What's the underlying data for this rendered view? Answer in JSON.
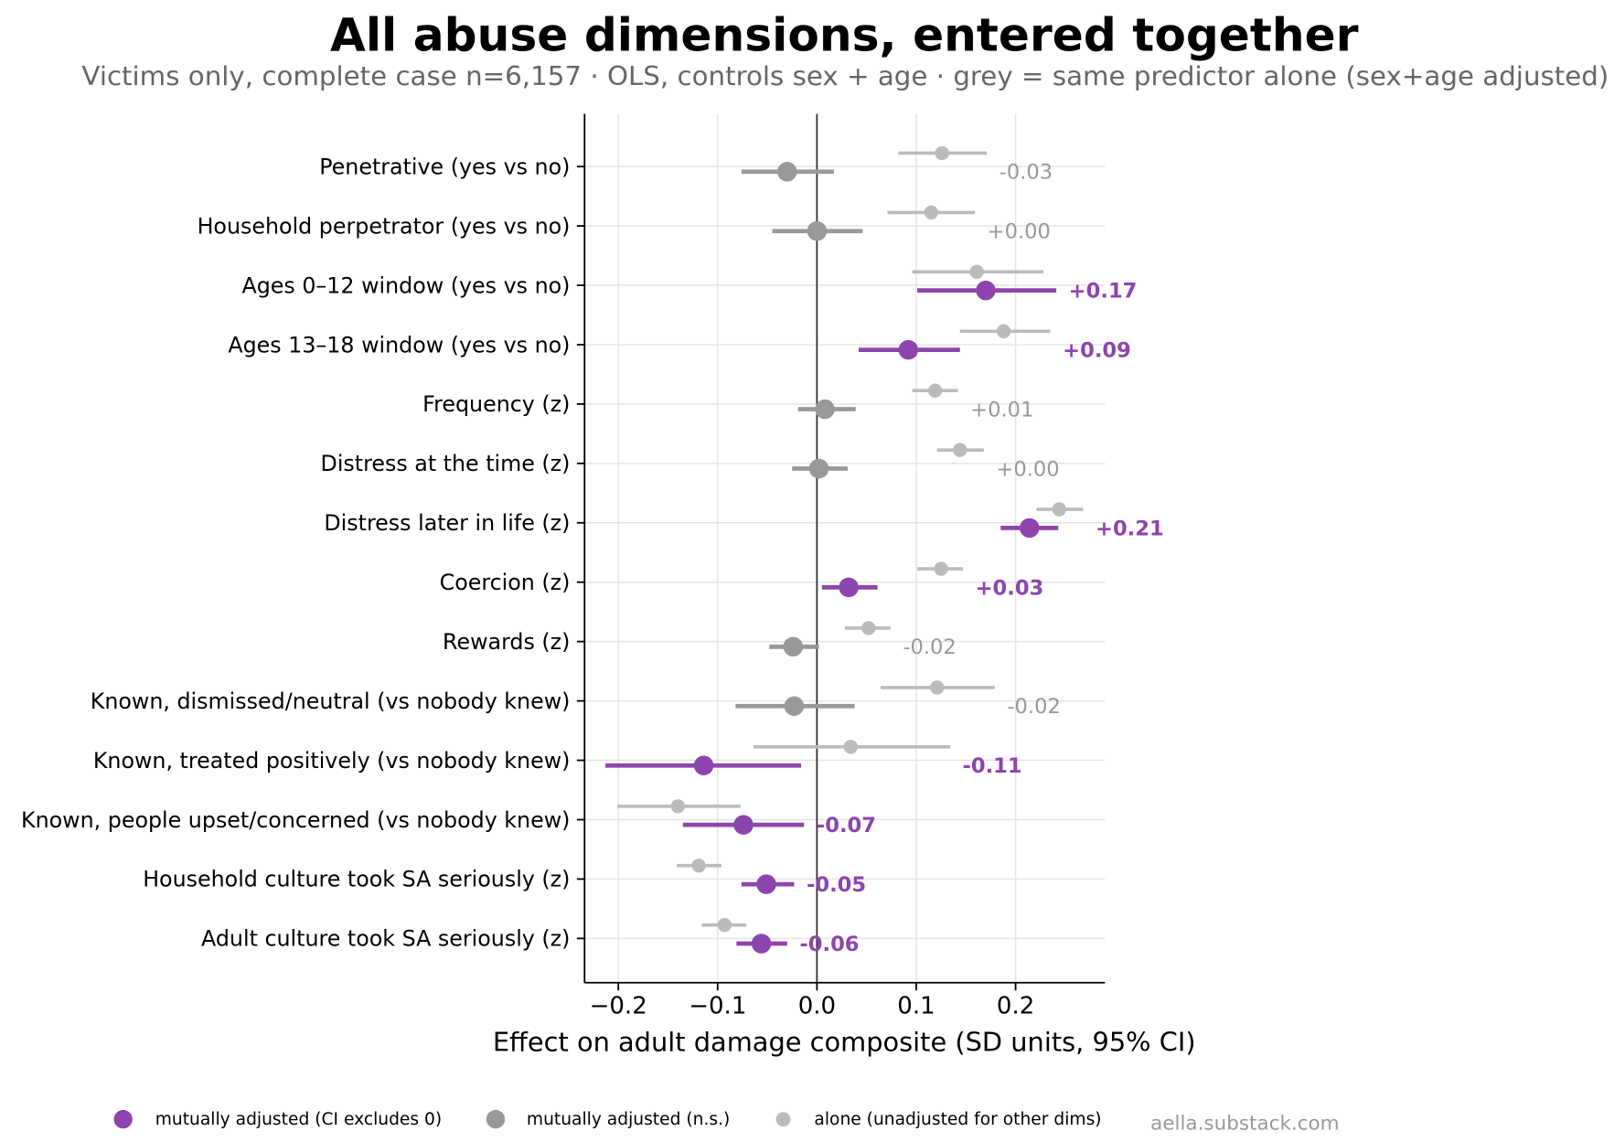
{
  "title": "All abuse dimensions, entered together",
  "subtitle": "Victims only, complete case n=6,157 · OLS, controls sex + age · grey = same predictor alone (sex+age adjusted)",
  "watermark": "aella.substack.com",
  "legend": [
    {
      "label": "mutually adjusted (CI excludes 0)",
      "color": "#8e44ad"
    },
    {
      "label": "mutually adjusted (n.s.)",
      "color": "#999999"
    },
    {
      "label": "alone (unadjusted for other dims)",
      "color": "#bbbbbb"
    }
  ],
  "chart_data": {
    "type": "scatter",
    "xlabel": "Effect on adult damage composite (SD units, 95% CI)",
    "xlim": [
      -0.234,
      0.29
    ],
    "xticks": [
      -0.2,
      -0.1,
      0,
      0.1,
      0.2
    ],
    "xtick_labels": [
      "−0.2",
      "−0.1",
      "0.0",
      "0.1",
      "0.2"
    ],
    "reference_line_x": 0,
    "grid": true,
    "legend_position": "bottom",
    "categories": [
      "Penetrative (yes vs no)",
      "Household perpetrator (yes vs no)",
      "Ages 0–12 window (yes vs no)",
      "Ages 13–18 window (yes vs no)",
      "Frequency (z)",
      "Distress at the time (z)",
      "Distress later in life (z)",
      "Coercion (z)",
      "Rewards (z)",
      "Known, dismissed/neutral (vs nobody knew)",
      "Known, treated positively (vs nobody knew)",
      "Known, people upset/concerned (vs nobody knew)",
      "Household culture took SA seriously (z)",
      "Adult culture took SA seriously (z)"
    ],
    "adjusted": {
      "estimate": [
        -0.03,
        0,
        0.17,
        0.092,
        0.008,
        0.002,
        0.214,
        0.032,
        -0.024,
        -0.023,
        -0.114,
        -0.074,
        -0.051,
        -0.056
      ],
      "ci_low": [
        -0.076,
        -0.045,
        0.101,
        0.042,
        -0.019,
        -0.025,
        0.185,
        0.005,
        -0.048,
        -0.082,
        -0.213,
        -0.135,
        -0.076,
        -0.081
      ],
      "ci_high": [
        0.017,
        0.046,
        0.241,
        0.144,
        0.039,
        0.031,
        0.243,
        0.061,
        0.002,
        0.038,
        -0.016,
        -0.013,
        -0.023,
        -0.03
      ],
      "ci_excludes_zero": [
        false,
        false,
        true,
        true,
        false,
        false,
        true,
        true,
        false,
        false,
        true,
        true,
        true,
        true
      ],
      "labels": [
        "-0.03",
        "+0.00",
        "+0.17",
        "+0.09",
        "+0.01",
        "+0.00",
        "+0.21",
        "+0.03",
        "-0.02",
        "-0.02",
        "-0.11",
        "-0.07",
        "-0.05",
        "-0.06"
      ]
    },
    "alone": {
      "estimate": [
        0.126,
        0.115,
        0.161,
        0.188,
        0.119,
        0.144,
        0.244,
        0.125,
        0.052,
        0.121,
        0.034,
        -0.14,
        -0.119,
        -0.093
      ],
      "ci_low": [
        0.082,
        0.071,
        0.096,
        0.144,
        0.096,
        0.121,
        0.221,
        0.101,
        0.028,
        0.064,
        -0.064,
        -0.201,
        -0.141,
        -0.116
      ],
      "ci_high": [
        0.171,
        0.159,
        0.228,
        0.235,
        0.142,
        0.168,
        0.268,
        0.147,
        0.074,
        0.179,
        0.134,
        -0.077,
        -0.096,
        -0.071
      ]
    }
  }
}
